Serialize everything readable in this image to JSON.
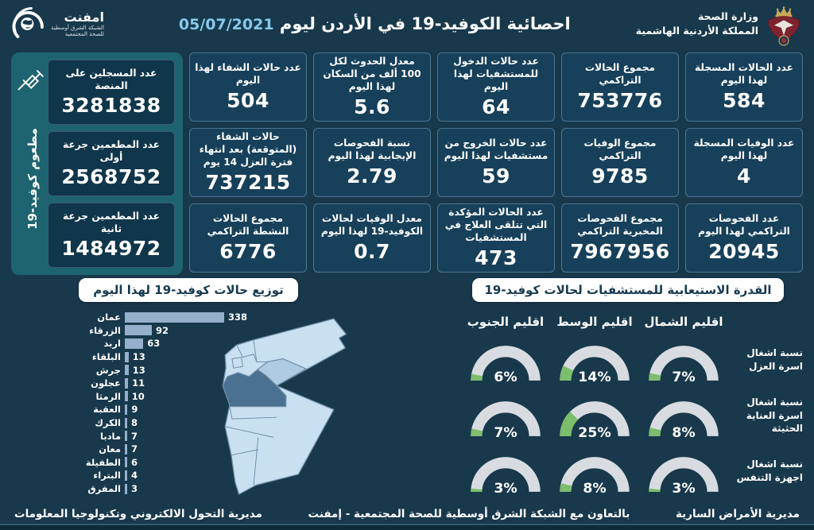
{
  "header": {
    "title": "احصائية الكوفيد-19 في الأردن ليوم",
    "date": "05/07/2021",
    "ministry_line1": "وزارة الصحة",
    "ministry_line2": "المملكة الأردنية الهاشمية",
    "network_name": "امفنت",
    "network_sub1": "الشبكة الشرق أوسطية",
    "network_sub2": "للصحة المجتمعية"
  },
  "stats": {
    "columns": [
      [
        {
          "label": "عدد الحالات المسجلة لهذا اليوم",
          "value": "584"
        },
        {
          "label": "عدد الوفيات المسجلة لهذا اليوم",
          "value": "4"
        },
        {
          "label": "عدد الفحوصات التراكمي لهذا اليوم",
          "value": "20945"
        }
      ],
      [
        {
          "label": "مجموع الحالات التراكمي",
          "value": "753776"
        },
        {
          "label": "مجموع الوفيات التراكمي",
          "value": "9785"
        },
        {
          "label": "مجموع الفحوصات المخبرية التراكمي",
          "value": "7967956"
        }
      ],
      [
        {
          "label": "عدد حالات الدخول للمستشفيات لهذا اليوم",
          "value": "64"
        },
        {
          "label": "عدد حالات الخروج من مستشفيات لهذا اليوم",
          "value": "59"
        },
        {
          "label": "عدد الحالات المؤكدة التي تتلقى العلاج في المستشفيات",
          "value": "473"
        }
      ],
      [
        {
          "label": "معدل الحدوث لكل 100 ألف من السكان لهذا اليوم",
          "value": "5.6"
        },
        {
          "label": "نسبة الفحوصات الإيجابية لهذا اليوم",
          "value": "2.79"
        },
        {
          "label": "معدل الوفيات لحالات الكوفيد-19 لهذا اليوم",
          "value": "0.7"
        }
      ],
      [
        {
          "label": "عدد حالات الشفاء لهذا اليوم",
          "value": "504"
        },
        {
          "label": "حالات الشفاء (المتوقعة) بعد انتهاء فترة العزل 14 يوم",
          "value": "737215"
        },
        {
          "label": "مجموع الحالات النشطة التراكمي",
          "value": "6776"
        }
      ]
    ]
  },
  "vaccine": {
    "side_label": "مطعوم كوفيد-19",
    "cards": [
      {
        "label": "عدد المسجلين على المنصة",
        "value": "3281838"
      },
      {
        "label": "عدد المطعمين جرعة أولى",
        "value": "2568752"
      },
      {
        "label": "عدد المطعمين جرعة ثانية",
        "value": "1484972"
      }
    ]
  },
  "chart_data": [
    {
      "type": "bar",
      "orientation": "horizontal",
      "title": "توزيع حالات كوفيد-19 لهذا اليوم",
      "categories": [
        "عمان",
        "الزرقاء",
        "اربد",
        "البلقاء",
        "جرش",
        "عجلون",
        "الرمثا",
        "العقبة",
        "الكرك",
        "مادبا",
        "معان",
        "الطفيلة",
        "البتراء",
        "المفرق"
      ],
      "values": [
        338,
        92,
        63,
        13,
        13,
        11,
        10,
        9,
        8,
        7,
        7,
        6,
        4,
        3
      ],
      "xlim": [
        0,
        360
      ],
      "bar_color": "#94B0CB",
      "legend": "none",
      "grid": "off"
    },
    {
      "type": "gauge",
      "title": "القدرة الاستيعابية للمستشفيات لحالات كوفيد-19",
      "columns": [
        "اقليم الشمال",
        "اقليم الوسط",
        "اقليم الجنوب"
      ],
      "rows": [
        {
          "label": "نسبة اشغال اسرة العزل",
          "values": [
            7,
            14,
            6
          ]
        },
        {
          "label": "نسبة اشغال اسرة العناية الحثيثة",
          "values": [
            8,
            25,
            7
          ]
        },
        {
          "label": "نسبة اشغال اجهزة التنفس",
          "values": [
            3,
            8,
            3
          ]
        }
      ],
      "value_unit": "%",
      "range": [
        0,
        100
      ],
      "track_color": "#D8DCE0",
      "fill_color": "#7CBE6B"
    }
  ],
  "footer": {
    "right": "مديرية الأمراض السارية",
    "center": "بالتعاون مع الشبكة الشرق أوسطية للصحة المجتمعية - إمفنت",
    "left": "مديرية التحول الالكتروني وتكنولوجيا المعلومات"
  },
  "colors": {
    "background": "#18384C",
    "card_bg": "#17405A",
    "card_border": "#4E7690",
    "vaccine_panel": "#1E6470",
    "bar": "#94B0CB",
    "gauge_fill": "#7CBE6B",
    "gauge_track": "#D8DCE0",
    "date_accent": "#87C9E9",
    "map_base": "#C9E0F1",
    "map_amman": "#4A7191",
    "map_zarqa": "#AFCBE2"
  }
}
